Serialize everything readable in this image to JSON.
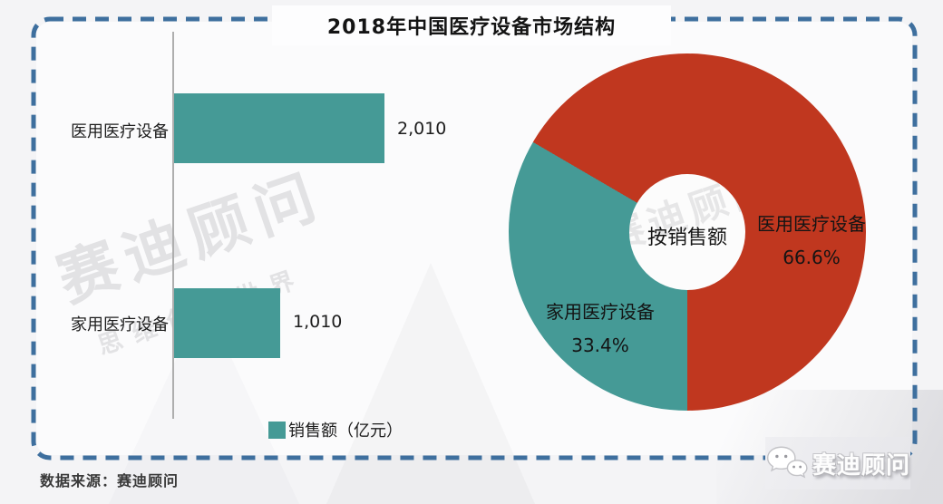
{
  "title": "2018年中国医疗设备市场结构",
  "source_note": "数据来源：赛迪顾问",
  "watermark": {
    "line1": "赛迪顾问",
    "line2": "思维创造世界"
  },
  "brand_logo": {
    "name": "赛迪顾问",
    "icon": "wechat-bubbles-icon"
  },
  "colors": {
    "series_teal": "#459a96",
    "series_red": "#c0371f",
    "border_blue": "#3e6f9e"
  },
  "chart_data": [
    {
      "type": "bar",
      "orientation": "horizontal",
      "categories": [
        "医用医疗设备",
        "家用医疗设备"
      ],
      "values": [
        2010,
        1010
      ],
      "value_labels": [
        "2,010",
        "1,010"
      ],
      "legend": [
        "销售额（亿元）"
      ],
      "legend_position": "bottom",
      "series_color": "#459a96",
      "xlim": [
        0,
        2010
      ],
      "grid": false
    },
    {
      "type": "pie",
      "donut": true,
      "center_label": "按销售额",
      "slices": [
        {
          "label": "医用医疗设备",
          "value_pct": 66.6,
          "pct_label": "66.6%",
          "color": "#c0371f"
        },
        {
          "label": "家用医疗设备",
          "value_pct": 33.4,
          "pct_label": "33.4%",
          "color": "#459a96"
        }
      ],
      "layout_hint": "teal slice starts at 6 o'clock sweeping clockwise up the left side; labels drawn on slices"
    }
  ]
}
